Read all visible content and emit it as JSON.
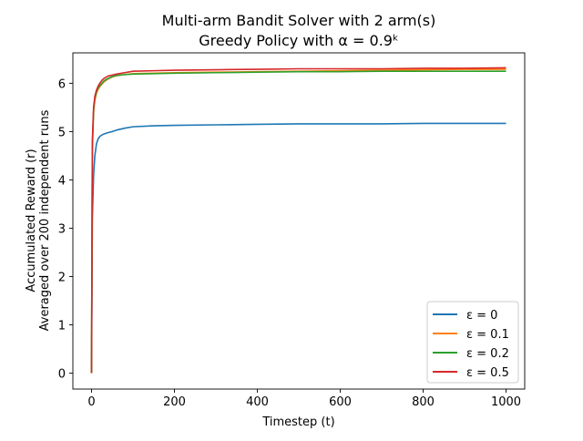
{
  "chart_data": {
    "type": "line",
    "title": "Multi-arm Bandit Solver with 2 arm(s)",
    "subtitle": "Greedy Policy with α = 0.9ᵏ",
    "xlabel": "Timestep (t)",
    "ylabel": "Accumulated Reward (r)",
    "ylabel2": "Averaged over 200 independent runs",
    "xlim": [
      -45,
      1045
    ],
    "ylim": [
      -0.33,
      6.63
    ],
    "xticks": [
      0,
      200,
      400,
      600,
      800,
      1000
    ],
    "xtick_labels": [
      "0",
      "200",
      "400",
      "600",
      "800",
      "1000"
    ],
    "yticks": [
      0,
      1,
      2,
      3,
      4,
      5,
      6
    ],
    "ytick_labels": [
      "0",
      "1",
      "2",
      "3",
      "4",
      "5",
      "6"
    ],
    "grid": false,
    "legend_position": "lower-right",
    "x": [
      0,
      2,
      5,
      8,
      12,
      16,
      20,
      25,
      30,
      40,
      50,
      60,
      80,
      100,
      150,
      200,
      300,
      400,
      500,
      600,
      700,
      800,
      900,
      1000
    ],
    "series": [
      {
        "name": "ε = 0",
        "color": "#1f77b4",
        "values": [
          0.0,
          3.2,
          4.1,
          4.5,
          4.75,
          4.85,
          4.9,
          4.93,
          4.95,
          4.98,
          5.0,
          5.03,
          5.07,
          5.1,
          5.12,
          5.13,
          5.14,
          5.15,
          5.16,
          5.16,
          5.16,
          5.17,
          5.17,
          5.17
        ]
      },
      {
        "name": "ε = 0.1",
        "color": "#ff7f0e",
        "values": [
          0.0,
          4.6,
          5.4,
          5.65,
          5.8,
          5.88,
          5.93,
          5.98,
          6.03,
          6.09,
          6.13,
          6.16,
          6.18,
          6.2,
          6.21,
          6.22,
          6.23,
          6.24,
          6.25,
          6.26,
          6.27,
          6.28,
          6.29,
          6.29
        ]
      },
      {
        "name": "ε = 0.2",
        "color": "#2ca02c",
        "values": [
          0.0,
          4.7,
          5.45,
          5.68,
          5.82,
          5.9,
          5.95,
          6.0,
          6.05,
          6.1,
          6.14,
          6.16,
          6.18,
          6.19,
          6.2,
          6.21,
          6.22,
          6.23,
          6.24,
          6.24,
          6.25,
          6.25,
          6.25,
          6.25
        ]
      },
      {
        "name": "ε = 0.5",
        "color": "#d62728",
        "values": [
          0.0,
          4.8,
          5.5,
          5.73,
          5.86,
          5.94,
          6.0,
          6.06,
          6.1,
          6.15,
          6.17,
          6.19,
          6.22,
          6.25,
          6.26,
          6.27,
          6.28,
          6.29,
          6.3,
          6.3,
          6.3,
          6.31,
          6.31,
          6.32
        ]
      }
    ]
  }
}
